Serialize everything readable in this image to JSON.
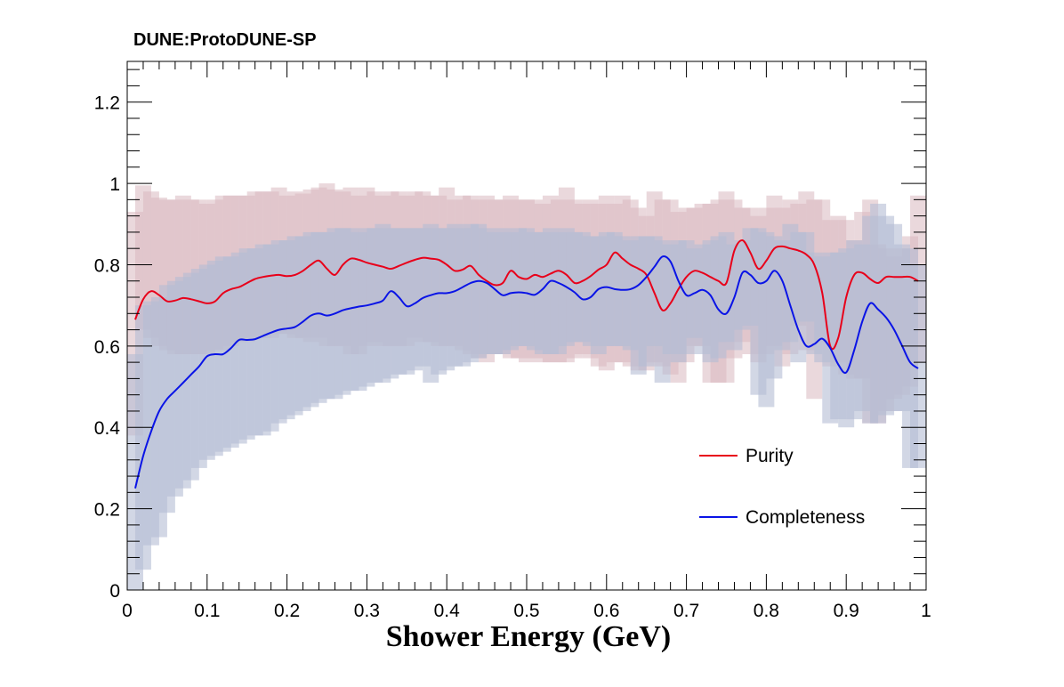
{
  "chart_data": {
    "type": "line",
    "title": "DUNE:ProtoDUNE-SP",
    "xlabel": "Shower Energy (GeV)",
    "ylabel": "",
    "xlim": [
      0,
      1
    ],
    "ylim": [
      0,
      1.3
    ],
    "xticks": [
      "0",
      "0.1",
      "0.2",
      "0.3",
      "0.4",
      "0.5",
      "0.6",
      "0.7",
      "0.8",
      "0.9",
      "1"
    ],
    "yticks": [
      "0",
      "0.2",
      "0.4",
      "0.6",
      "0.8",
      "1",
      "1.2"
    ],
    "legend": {
      "position": "right-middle",
      "entries": [
        "Purity",
        "Completeness"
      ]
    },
    "series": [
      {
        "name": "Purity",
        "color": "#e8001a",
        "x": [
          0.01,
          0.02,
          0.03,
          0.04,
          0.05,
          0.06,
          0.07,
          0.08,
          0.09,
          0.1,
          0.11,
          0.12,
          0.13,
          0.14,
          0.15,
          0.16,
          0.17,
          0.18,
          0.19,
          0.2,
          0.21,
          0.22,
          0.23,
          0.24,
          0.25,
          0.26,
          0.27,
          0.28,
          0.29,
          0.3,
          0.31,
          0.32,
          0.33,
          0.34,
          0.35,
          0.36,
          0.37,
          0.38,
          0.39,
          0.4,
          0.41,
          0.42,
          0.43,
          0.44,
          0.45,
          0.46,
          0.47,
          0.48,
          0.49,
          0.5,
          0.51,
          0.52,
          0.53,
          0.54,
          0.55,
          0.56,
          0.57,
          0.58,
          0.59,
          0.6,
          0.61,
          0.62,
          0.63,
          0.64,
          0.65,
          0.66,
          0.67,
          0.68,
          0.69,
          0.7,
          0.71,
          0.72,
          0.73,
          0.74,
          0.75,
          0.76,
          0.77,
          0.78,
          0.79,
          0.8,
          0.81,
          0.82,
          0.83,
          0.84,
          0.85,
          0.86,
          0.87,
          0.88,
          0.89,
          0.9,
          0.91,
          0.92,
          0.93,
          0.94,
          0.95,
          0.96,
          0.97,
          0.98,
          0.99
        ],
        "values": [
          0.665,
          0.715,
          0.735,
          0.725,
          0.71,
          0.712,
          0.718,
          0.715,
          0.71,
          0.705,
          0.71,
          0.73,
          0.74,
          0.745,
          0.755,
          0.765,
          0.77,
          0.773,
          0.775,
          0.772,
          0.775,
          0.785,
          0.8,
          0.81,
          0.79,
          0.775,
          0.8,
          0.815,
          0.812,
          0.805,
          0.8,
          0.795,
          0.79,
          0.797,
          0.805,
          0.812,
          0.817,
          0.815,
          0.812,
          0.8,
          0.785,
          0.788,
          0.797,
          0.775,
          0.76,
          0.75,
          0.755,
          0.785,
          0.77,
          0.765,
          0.775,
          0.77,
          0.778,
          0.785,
          0.775,
          0.755,
          0.76,
          0.772,
          0.788,
          0.8,
          0.83,
          0.815,
          0.8,
          0.79,
          0.775,
          0.73,
          0.688,
          0.705,
          0.74,
          0.77,
          0.785,
          0.78,
          0.77,
          0.76,
          0.755,
          0.835,
          0.86,
          0.83,
          0.79,
          0.81,
          0.84,
          0.845,
          0.84,
          0.835,
          0.825,
          0.8,
          0.73,
          0.6,
          0.62,
          0.72,
          0.775,
          0.78,
          0.765,
          0.755,
          0.77,
          0.77,
          0.77,
          0.77,
          0.76
        ]
      },
      {
        "name": "Completeness",
        "color": "#0a14e6",
        "x": [
          0.01,
          0.02,
          0.03,
          0.04,
          0.05,
          0.06,
          0.07,
          0.08,
          0.09,
          0.1,
          0.11,
          0.12,
          0.13,
          0.14,
          0.15,
          0.16,
          0.17,
          0.18,
          0.19,
          0.2,
          0.21,
          0.22,
          0.23,
          0.24,
          0.25,
          0.26,
          0.27,
          0.28,
          0.29,
          0.3,
          0.31,
          0.32,
          0.33,
          0.34,
          0.35,
          0.36,
          0.37,
          0.38,
          0.39,
          0.4,
          0.41,
          0.42,
          0.43,
          0.44,
          0.45,
          0.46,
          0.47,
          0.48,
          0.49,
          0.5,
          0.51,
          0.52,
          0.53,
          0.54,
          0.55,
          0.56,
          0.57,
          0.58,
          0.59,
          0.6,
          0.61,
          0.62,
          0.63,
          0.64,
          0.65,
          0.66,
          0.67,
          0.68,
          0.69,
          0.7,
          0.71,
          0.72,
          0.73,
          0.74,
          0.75,
          0.76,
          0.77,
          0.78,
          0.79,
          0.8,
          0.81,
          0.82,
          0.83,
          0.84,
          0.85,
          0.86,
          0.87,
          0.88,
          0.89,
          0.9,
          0.91,
          0.92,
          0.93,
          0.94,
          0.95,
          0.96,
          0.97,
          0.98,
          0.99
        ],
        "values": [
          0.25,
          0.33,
          0.39,
          0.44,
          0.47,
          0.49,
          0.51,
          0.53,
          0.55,
          0.575,
          0.58,
          0.58,
          0.595,
          0.615,
          0.615,
          0.617,
          0.625,
          0.633,
          0.64,
          0.643,
          0.647,
          0.66,
          0.675,
          0.68,
          0.675,
          0.68,
          0.688,
          0.693,
          0.697,
          0.7,
          0.705,
          0.712,
          0.735,
          0.72,
          0.698,
          0.705,
          0.718,
          0.725,
          0.73,
          0.73,
          0.735,
          0.745,
          0.755,
          0.76,
          0.755,
          0.74,
          0.725,
          0.73,
          0.732,
          0.73,
          0.726,
          0.74,
          0.76,
          0.755,
          0.745,
          0.732,
          0.715,
          0.72,
          0.74,
          0.745,
          0.74,
          0.738,
          0.74,
          0.75,
          0.77,
          0.795,
          0.82,
          0.808,
          0.76,
          0.725,
          0.73,
          0.738,
          0.725,
          0.69,
          0.68,
          0.72,
          0.78,
          0.775,
          0.755,
          0.76,
          0.785,
          0.76,
          0.7,
          0.64,
          0.6,
          0.605,
          0.618,
          0.595,
          0.555,
          0.535,
          0.59,
          0.66,
          0.705,
          0.69,
          0.67,
          0.64,
          0.6,
          0.56,
          0.545
        ]
      }
    ],
    "bands": [
      {
        "name": "Purity spread",
        "color": "#d8b8c0",
        "x": [
          0.01,
          0.02,
          0.03,
          0.04,
          0.05,
          0.06,
          0.07,
          0.08,
          0.09,
          0.1,
          0.11,
          0.12,
          0.13,
          0.14,
          0.15,
          0.16,
          0.17,
          0.18,
          0.19,
          0.2,
          0.21,
          0.22,
          0.23,
          0.24,
          0.25,
          0.26,
          0.27,
          0.28,
          0.29,
          0.3,
          0.31,
          0.32,
          0.33,
          0.34,
          0.35,
          0.36,
          0.37,
          0.38,
          0.39,
          0.4,
          0.41,
          0.42,
          0.43,
          0.44,
          0.45,
          0.46,
          0.47,
          0.48,
          0.49,
          0.5,
          0.51,
          0.52,
          0.53,
          0.54,
          0.55,
          0.56,
          0.57,
          0.58,
          0.59,
          0.6,
          0.61,
          0.62,
          0.63,
          0.64,
          0.65,
          0.66,
          0.67,
          0.68,
          0.69,
          0.7,
          0.71,
          0.72,
          0.73,
          0.74,
          0.75,
          0.76,
          0.77,
          0.78,
          0.79,
          0.8,
          0.81,
          0.82,
          0.83,
          0.84,
          0.85,
          0.86,
          0.87,
          0.88,
          0.89,
          0.9,
          0.91,
          0.92,
          0.93,
          0.94,
          0.95,
          0.96,
          0.97,
          0.98,
          0.99
        ],
        "low": [
          0.38,
          0.64,
          0.62,
          0.6,
          0.59,
          0.58,
          0.58,
          0.58,
          0.58,
          0.58,
          0.59,
          0.59,
          0.6,
          0.61,
          0.61,
          0.62,
          0.62,
          0.62,
          0.63,
          0.63,
          0.62,
          0.62,
          0.61,
          0.62,
          0.6,
          0.6,
          0.6,
          0.58,
          0.58,
          0.6,
          0.61,
          0.6,
          0.6,
          0.6,
          0.6,
          0.62,
          0.61,
          0.61,
          0.6,
          0.6,
          0.6,
          0.59,
          0.58,
          0.57,
          0.56,
          0.58,
          0.58,
          0.57,
          0.57,
          0.56,
          0.57,
          0.56,
          0.56,
          0.56,
          0.56,
          0.57,
          0.58,
          0.57,
          0.55,
          0.54,
          0.56,
          0.56,
          0.55,
          0.54,
          0.54,
          0.56,
          0.55,
          0.53,
          0.51,
          0.56,
          0.6,
          0.6,
          0.51,
          0.51,
          0.51,
          0.57,
          0.61,
          0.58,
          0.56,
          0.58,
          0.6,
          0.55,
          0.58,
          0.65,
          0.59,
          0.47,
          0.61,
          0.55,
          0.56,
          0.53,
          0.52,
          0.52,
          0.41,
          0.41,
          0.44,
          0.47,
          0.48,
          0.5,
          0.56
        ],
        "high": [
          0.93,
          0.995,
          0.98,
          0.965,
          0.96,
          0.96,
          0.97,
          0.96,
          0.96,
          0.95,
          0.96,
          0.97,
          0.97,
          0.97,
          0.97,
          0.98,
          0.98,
          0.98,
          0.99,
          0.97,
          0.98,
          0.975,
          0.985,
          0.99,
          1.0,
          0.985,
          0.98,
          0.99,
          0.97,
          0.99,
          0.98,
          0.97,
          0.98,
          0.98,
          0.97,
          0.98,
          0.98,
          0.97,
          0.97,
          0.99,
          0.96,
          0.97,
          0.97,
          0.96,
          0.97,
          0.96,
          0.96,
          0.97,
          0.96,
          0.96,
          0.96,
          0.95,
          0.97,
          0.96,
          0.99,
          0.96,
          0.95,
          0.96,
          0.95,
          0.97,
          0.95,
          0.97,
          0.96,
          0.94,
          0.92,
          0.98,
          0.96,
          0.96,
          0.93,
          0.94,
          0.94,
          0.95,
          0.95,
          0.96,
          0.98,
          0.96,
          0.94,
          0.94,
          0.92,
          0.94,
          0.97,
          0.94,
          0.96,
          0.95,
          0.98,
          0.96,
          0.96,
          0.91,
          0.92,
          0.91,
          0.86,
          0.93,
          0.96,
          0.85,
          0.84,
          0.82,
          0.84,
          0.87,
          0.97
        ]
      },
      {
        "name": "Completeness spread",
        "color": "#b4bcd4",
        "x": [
          0.01,
          0.02,
          0.03,
          0.04,
          0.05,
          0.06,
          0.07,
          0.08,
          0.09,
          0.1,
          0.11,
          0.12,
          0.13,
          0.14,
          0.15,
          0.16,
          0.17,
          0.18,
          0.19,
          0.2,
          0.21,
          0.22,
          0.23,
          0.24,
          0.25,
          0.26,
          0.27,
          0.28,
          0.29,
          0.3,
          0.31,
          0.32,
          0.33,
          0.34,
          0.35,
          0.36,
          0.37,
          0.38,
          0.39,
          0.4,
          0.41,
          0.42,
          0.43,
          0.44,
          0.45,
          0.46,
          0.47,
          0.48,
          0.49,
          0.5,
          0.51,
          0.52,
          0.53,
          0.54,
          0.55,
          0.56,
          0.57,
          0.58,
          0.59,
          0.6,
          0.61,
          0.62,
          0.63,
          0.64,
          0.65,
          0.66,
          0.67,
          0.68,
          0.69,
          0.7,
          0.71,
          0.72,
          0.73,
          0.74,
          0.75,
          0.76,
          0.77,
          0.78,
          0.79,
          0.8,
          0.81,
          0.82,
          0.83,
          0.84,
          0.85,
          0.86,
          0.87,
          0.88,
          0.89,
          0.9,
          0.91,
          0.92,
          0.93,
          0.94,
          0.95,
          0.96,
          0.97,
          0.98,
          0.99
        ],
        "low": [
          0.0,
          0.05,
          0.11,
          0.13,
          0.19,
          0.23,
          0.25,
          0.27,
          0.3,
          0.32,
          0.33,
          0.34,
          0.35,
          0.36,
          0.37,
          0.38,
          0.38,
          0.39,
          0.41,
          0.42,
          0.43,
          0.44,
          0.45,
          0.46,
          0.47,
          0.47,
          0.48,
          0.49,
          0.49,
          0.5,
          0.51,
          0.51,
          0.52,
          0.53,
          0.53,
          0.54,
          0.55,
          0.51,
          0.53,
          0.54,
          0.55,
          0.55,
          0.56,
          0.57,
          0.58,
          0.58,
          0.58,
          0.59,
          0.6,
          0.6,
          0.59,
          0.58,
          0.58,
          0.58,
          0.6,
          0.61,
          0.61,
          0.6,
          0.58,
          0.6,
          0.6,
          0.6,
          0.59,
          0.53,
          0.55,
          0.6,
          0.51,
          0.58,
          0.56,
          0.58,
          0.62,
          0.58,
          0.56,
          0.57,
          0.61,
          0.59,
          0.64,
          0.65,
          0.48,
          0.45,
          0.52,
          0.59,
          0.61,
          0.56,
          0.66,
          0.58,
          0.56,
          0.41,
          0.42,
          0.4,
          0.42,
          0.44,
          0.41,
          0.41,
          0.43,
          0.44,
          0.44,
          0.3,
          0.3
        ],
        "high": [
          0.58,
          0.7,
          0.71,
          0.72,
          0.75,
          0.76,
          0.77,
          0.78,
          0.79,
          0.8,
          0.81,
          0.82,
          0.82,
          0.83,
          0.84,
          0.84,
          0.85,
          0.85,
          0.86,
          0.86,
          0.87,
          0.87,
          0.88,
          0.88,
          0.88,
          0.89,
          0.89,
          0.89,
          0.88,
          0.89,
          0.89,
          0.9,
          0.89,
          0.89,
          0.89,
          0.89,
          0.89,
          0.9,
          0.89,
          0.89,
          0.9,
          0.89,
          0.9,
          0.9,
          0.89,
          0.88,
          0.89,
          0.88,
          0.89,
          0.89,
          0.88,
          0.88,
          0.89,
          0.88,
          0.89,
          0.88,
          0.88,
          0.87,
          0.87,
          0.88,
          0.88,
          0.87,
          0.86,
          0.87,
          0.87,
          0.87,
          0.86,
          0.85,
          0.86,
          0.86,
          0.84,
          0.85,
          0.86,
          0.87,
          0.88,
          0.85,
          0.86,
          0.89,
          0.89,
          0.88,
          0.87,
          0.86,
          0.9,
          0.88,
          0.88,
          0.83,
          0.82,
          0.83,
          0.83,
          0.84,
          0.86,
          0.85,
          0.92,
          0.95,
          0.92,
          0.9,
          0.85,
          0.84,
          0.8
        ]
      }
    ]
  }
}
